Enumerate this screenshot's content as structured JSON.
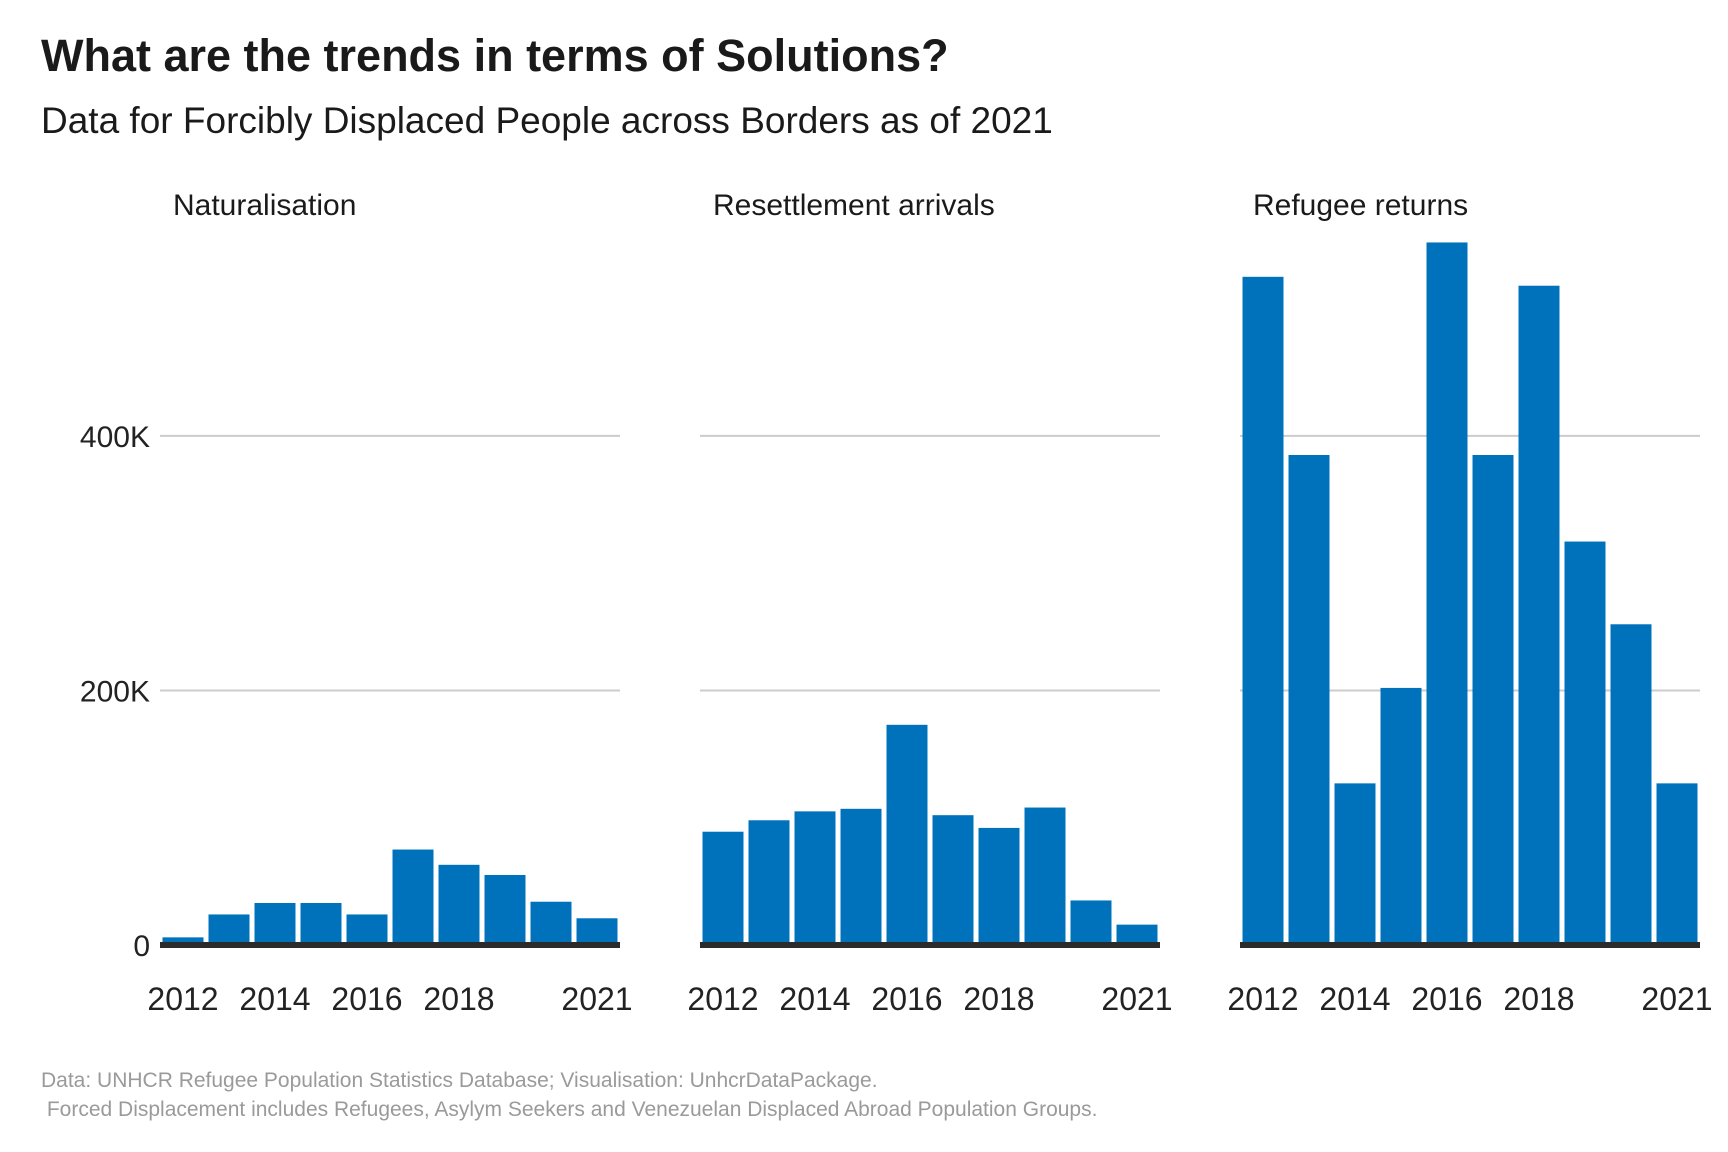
{
  "title": "What are the trends in terms of Solutions?",
  "subtitle": "Data for Forcibly Displaced People across Borders as of 2021",
  "caption_line1": "Data: UNHCR Refugee Population Statistics Database; Visualisation: UnhcrDataPackage.",
  "caption_line2": " Forced Displacement includes Refugees, Asylym Seekers and Venezuelan Displaced Abroad Population Groups.",
  "colors": {
    "bar": "#0072BC",
    "grid": "#cccccc",
    "baseline": "#2b2b2b",
    "text": "#222222"
  },
  "chart_data": {
    "type": "bar",
    "categories": [
      2012,
      2013,
      2014,
      2015,
      2016,
      2017,
      2018,
      2019,
      2020,
      2021
    ],
    "x_tick_labels": [
      "2012",
      "2014",
      "2016",
      "2018",
      "2021"
    ],
    "x_tick_values": [
      2012,
      2014,
      2016,
      2018,
      2021
    ],
    "ylim": [
      0,
      550000
    ],
    "y_ticks": [
      0,
      200000,
      400000
    ],
    "y_tick_labels": [
      "0",
      "200K",
      "400K"
    ],
    "grid": true,
    "panels": [
      {
        "name": "Naturalisation",
        "values": [
          6000,
          24000,
          33000,
          33000,
          24000,
          75000,
          63000,
          55000,
          34000,
          21000
        ]
      },
      {
        "name": "Resettlement arrivals",
        "values": [
          89000,
          98000,
          105000,
          107000,
          173000,
          102000,
          92000,
          108000,
          35000,
          16000
        ]
      },
      {
        "name": "Refugee returns",
        "values": [
          525000,
          385000,
          127000,
          202000,
          552000,
          385000,
          518000,
          317000,
          252000,
          127000
        ]
      }
    ]
  }
}
